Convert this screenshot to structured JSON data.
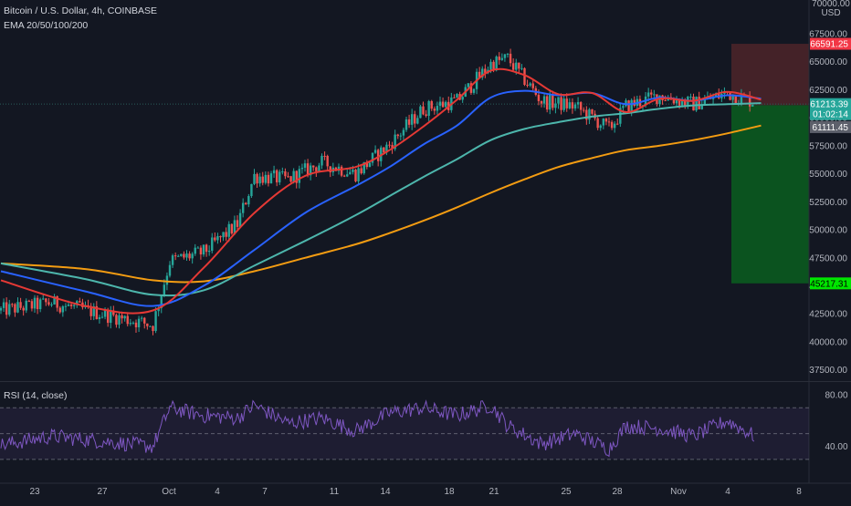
{
  "header": {
    "title": "Bitcoin / U.S. Dollar, 4h, COINBASE",
    "indicator": "EMA 20/50/100/200",
    "currency": "USD"
  },
  "rsi": {
    "label": "RSI (14, close)",
    "levels": [
      80,
      40
    ]
  },
  "colors": {
    "background": "#131722",
    "up": "#26a69a",
    "down": "#ef5350",
    "ema20": "#e53935",
    "ema50": "#2962ff",
    "ema100": "#4db6ac",
    "ema200": "#f39c12",
    "rsi_line": "#7e57c2",
    "stop_zone": "#4a2429",
    "target_zone": "#0b5a1f",
    "tp_tag": "#00e600",
    "sl_tag": "#f23645"
  },
  "price_tags": [
    {
      "value": "66591.25",
      "kind": "stop",
      "color": "#f23645",
      "text_color": "#ffffff"
    },
    {
      "value": "61213.39",
      "kind": "last",
      "color": "#26a69a",
      "text_color": "#ffffff"
    },
    {
      "value": "01:02:14",
      "kind": "countdown",
      "color": "#26a69a",
      "text_color": "#ffffff"
    },
    {
      "value": "61111.45",
      "kind": "entry",
      "color": "#5d606b",
      "text_color": "#ffffff"
    },
    {
      "value": "45217.31",
      "kind": "target",
      "color": "#00e600",
      "text_color": "#000000"
    }
  ],
  "chart_data": [
    {
      "type": "line",
      "title": "Bitcoin / U.S. Dollar, 4h, COINBASE",
      "ylabel": "USD",
      "ylim": [
        36500,
        70500
      ],
      "y_ticks": [
        "70000.00",
        "67500.00",
        "65000.00",
        "62500.00",
        "60000.00",
        "57500.00",
        "55000.00",
        "52500.00",
        "50000.00",
        "47500.00",
        "45000.00",
        "42500.00",
        "40000.00",
        "37500.00"
      ],
      "x_tick_labels": [
        "23",
        "27",
        "Oct",
        "4",
        "7",
        "11",
        "14",
        "18",
        "21",
        "25",
        "28",
        "Nov",
        "4",
        "8"
      ],
      "grid": false,
      "series": [
        {
          "name": "EMA 20",
          "x": [
            "Sep 21",
            "Sep 26",
            "Sep 30",
            "Oct 3",
            "Oct 6",
            "Oct 9",
            "Oct 12",
            "Oct 14",
            "Oct 16",
            "Oct 18",
            "Oct 20",
            "Oct 22",
            "Oct 24",
            "Oct 26",
            "Oct 28",
            "Oct 30",
            "Nov 1",
            "Nov 3",
            "Nov 5"
          ],
          "values": [
            45500,
            43200,
            42800,
            46600,
            51500,
            54800,
            55600,
            57100,
            59200,
            61600,
            64200,
            63800,
            62100,
            62200,
            60500,
            61700,
            61500,
            62300,
            61600
          ]
        },
        {
          "name": "EMA 50",
          "x": [
            "Sep 21",
            "Sep 26",
            "Sep 30",
            "Oct 3",
            "Oct 6",
            "Oct 9",
            "Oct 12",
            "Oct 14",
            "Oct 16",
            "Oct 18",
            "Oct 20",
            "Oct 22",
            "Oct 24",
            "Oct 26",
            "Oct 28",
            "Oct 30",
            "Nov 1",
            "Nov 3",
            "Nov 5"
          ],
          "values": [
            46300,
            44500,
            43200,
            45000,
            48200,
            51500,
            53900,
            55600,
            57600,
            59300,
            61800,
            62400,
            62000,
            62200,
            61200,
            61800,
            61500,
            62000,
            61700
          ]
        },
        {
          "name": "EMA 100",
          "x": [
            "Sep 21",
            "Sep 26",
            "Sep 30",
            "Oct 3",
            "Oct 6",
            "Oct 9",
            "Oct 12",
            "Oct 14",
            "Oct 16",
            "Oct 18",
            "Oct 20",
            "Oct 22",
            "Oct 24",
            "Oct 26",
            "Oct 28",
            "Oct 30",
            "Nov 1",
            "Nov 3",
            "Nov 5"
          ],
          "values": [
            47000,
            45600,
            44200,
            44600,
            46800,
            49000,
            51300,
            53000,
            54700,
            56300,
            58000,
            59000,
            59600,
            60100,
            60400,
            60800,
            61100,
            61200,
            61300
          ]
        },
        {
          "name": "EMA 200",
          "x": [
            "Sep 21",
            "Sep 26",
            "Sep 30",
            "Oct 3",
            "Oct 6",
            "Oct 9",
            "Oct 12",
            "Oct 14",
            "Oct 16",
            "Oct 18",
            "Oct 20",
            "Oct 22",
            "Oct 24",
            "Oct 26",
            "Oct 28",
            "Oct 30",
            "Nov 1",
            "Nov 3",
            "Nov 5"
          ],
          "values": [
            47000,
            46500,
            45500,
            45400,
            46300,
            47500,
            48700,
            49700,
            50800,
            52000,
            53300,
            54500,
            55600,
            56400,
            57100,
            57500,
            58000,
            58600,
            59300
          ]
        },
        {
          "name": "Close",
          "x": [
            "Sep 21",
            "Sep 24",
            "Sep 27",
            "Sep 30",
            "Oct 1",
            "Oct 3",
            "Oct 5",
            "Oct 6",
            "Oct 8",
            "Oct 10",
            "Oct 12",
            "Oct 14",
            "Oct 16",
            "Oct 18",
            "Oct 20",
            "Oct 21",
            "Oct 23",
            "Oct 25",
            "Oct 27",
            "Oct 28",
            "Oct 30",
            "Nov 1",
            "Nov 3",
            "Nov 5"
          ],
          "values": [
            42800,
            43500,
            42500,
            41500,
            47200,
            48000,
            50500,
            54800,
            54500,
            56000,
            55000,
            57600,
            60800,
            61500,
            64800,
            65300,
            61500,
            61000,
            59000,
            61000,
            62000,
            61200,
            62200,
            61213
          ]
        }
      ],
      "annotations": {
        "stop_loss": 66591.25,
        "entry": 61111.45,
        "last_price": 61213.39,
        "countdown": "01:02:14",
        "take_profit": 45217.31
      }
    },
    {
      "type": "line",
      "title": "RSI (14, close)",
      "ylim": [
        20,
        90
      ],
      "y_ticks": [
        "80.00",
        "40.00"
      ],
      "bands": [
        70,
        50,
        30
      ],
      "grid": false,
      "series": [
        {
          "name": "RSI",
          "x": [
            "Sep 21",
            "Sep 24",
            "Sep 27",
            "Sep 30",
            "Oct 1",
            "Oct 3",
            "Oct 5",
            "Oct 6",
            "Oct 8",
            "Oct 10",
            "Oct 12",
            "Oct 14",
            "Oct 16",
            "Oct 18",
            "Oct 20",
            "Oct 21",
            "Oct 23",
            "Oct 25",
            "Oct 27",
            "Oct 28",
            "Oct 30",
            "Nov 1",
            "Nov 3",
            "Nov 5"
          ],
          "values": [
            41,
            48,
            44,
            40,
            70,
            64,
            62,
            72,
            58,
            62,
            52,
            66,
            70,
            64,
            72,
            56,
            42,
            50,
            38,
            56,
            54,
            48,
            60,
            45
          ]
        }
      ]
    }
  ]
}
